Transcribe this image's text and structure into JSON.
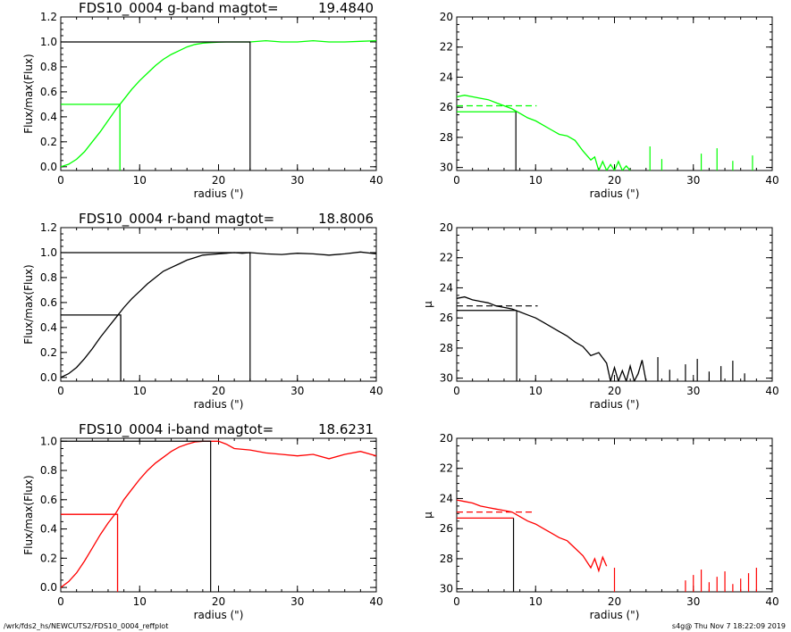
{
  "chart_data": [
    {
      "type": "line",
      "panel": "growth-curve",
      "band": "g",
      "title": "FDS10_0004 g-band  magtot=",
      "title_value": "19.4840",
      "color": "#00ff00",
      "xlabel": "radius (\")",
      "ylabel": "Flux/max(Flux)",
      "xlim": [
        0,
        40
      ],
      "ylim": [
        -0.03,
        1.2
      ],
      "xticks": [
        "0",
        "10",
        "20",
        "30",
        "40"
      ],
      "yticks": [
        "0.0",
        "0.2",
        "0.4",
        "0.6",
        "0.8",
        "1.0",
        "1.2"
      ],
      "x": [
        0,
        1,
        2,
        3,
        4,
        5,
        6,
        7,
        8,
        9,
        10,
        11,
        12,
        13,
        14,
        15,
        16,
        17,
        18,
        19,
        20,
        21,
        22,
        23,
        24,
        26,
        28,
        30,
        32,
        34,
        36,
        38,
        40
      ],
      "values": [
        0,
        0.02,
        0.06,
        0.12,
        0.2,
        0.28,
        0.37,
        0.46,
        0.54,
        0.62,
        0.69,
        0.75,
        0.81,
        0.86,
        0.9,
        0.93,
        0.96,
        0.98,
        0.99,
        0.995,
        0.998,
        1.0,
        1.0,
        1.0,
        1.0,
        1.01,
        1.0,
        1.0,
        1.01,
        1.0,
        1.0,
        1.005,
        1.01
      ],
      "half_radius": 7.5,
      "total_radius": 24
    },
    {
      "type": "line",
      "panel": "surface-brightness",
      "band": "g",
      "color": "#00ff00",
      "xlabel": "radius (\")",
      "ylabel": "",
      "xlim": [
        0,
        40
      ],
      "ylim": [
        20,
        30.2
      ],
      "xticks": [
        "0",
        "10",
        "20",
        "30",
        "40"
      ],
      "yticks": [
        "20",
        "22",
        "24",
        "26",
        "28",
        "30"
      ],
      "x": [
        0,
        1,
        2,
        3,
        4,
        5,
        6,
        7,
        8,
        9,
        10,
        11,
        12,
        13,
        14,
        15,
        16,
        17,
        17.5,
        18,
        18.5,
        19,
        19.5,
        20,
        20.5,
        21,
        21.5,
        22
      ],
      "values": [
        25.3,
        25.2,
        25.3,
        25.4,
        25.5,
        25.7,
        25.9,
        26.1,
        26.4,
        26.7,
        26.9,
        27.2,
        27.5,
        27.8,
        27.9,
        28.2,
        28.9,
        29.5,
        29.3,
        30.2,
        29.6,
        30.2,
        29.8,
        30.2,
        29.6,
        30.2,
        29.9,
        30.2
      ],
      "spikes_x": [
        24.5,
        26,
        31,
        33,
        35,
        37.5
      ],
      "half_mu": 26.3,
      "mean_mu": 25.9,
      "half_radius": 7.5
    },
    {
      "type": "line",
      "panel": "growth-curve",
      "band": "r",
      "title": "FDS10_0004 r-band  magtot=",
      "title_value": "18.8006",
      "color": "#000000",
      "xlabel": "radius (\")",
      "ylabel": "Flux/max(Flux)",
      "xlim": [
        0,
        40
      ],
      "ylim": [
        -0.03,
        1.2
      ],
      "xticks": [
        "0",
        "10",
        "20",
        "30",
        "40"
      ],
      "yticks": [
        "0.0",
        "0.2",
        "0.4",
        "0.6",
        "0.8",
        "1.0",
        "1.2"
      ],
      "x": [
        0,
        1,
        2,
        3,
        4,
        5,
        6,
        7,
        8,
        9,
        10,
        11,
        12,
        13,
        14,
        15,
        16,
        17,
        18,
        19,
        20,
        21,
        22,
        23,
        24,
        26,
        28,
        30,
        32,
        34,
        36,
        38,
        40
      ],
      "values": [
        0,
        0.03,
        0.08,
        0.15,
        0.23,
        0.32,
        0.4,
        0.48,
        0.56,
        0.63,
        0.69,
        0.75,
        0.8,
        0.85,
        0.88,
        0.91,
        0.94,
        0.96,
        0.98,
        0.985,
        0.99,
        0.995,
        1.0,
        0.995,
        1.0,
        0.99,
        0.985,
        0.995,
        0.99,
        0.98,
        0.99,
        1.005,
        0.99
      ],
      "half_radius": 7.6,
      "total_radius": 24
    },
    {
      "type": "line",
      "panel": "surface-brightness",
      "band": "r",
      "color": "#000000",
      "xlabel": "radius (\")",
      "ylabel": "μ",
      "xlim": [
        0,
        40
      ],
      "ylim": [
        20,
        30.2
      ],
      "xticks": [
        "0",
        "10",
        "20",
        "30",
        "40"
      ],
      "yticks": [
        "20",
        "22",
        "24",
        "26",
        "28",
        "30"
      ],
      "x": [
        0,
        1,
        2,
        3,
        4,
        5,
        6,
        7,
        8,
        9,
        10,
        11,
        12,
        13,
        14,
        15,
        16,
        17,
        18,
        19,
        19.5,
        20,
        20.5,
        21,
        21.5,
        22,
        22.5,
        23,
        23.5,
        24
      ],
      "values": [
        24.7,
        24.6,
        24.8,
        24.9,
        25.0,
        25.2,
        25.3,
        25.4,
        25.6,
        25.8,
        26.0,
        26.3,
        26.6,
        26.9,
        27.2,
        27.6,
        27.9,
        28.5,
        28.3,
        29.0,
        30.2,
        29.3,
        30.2,
        29.5,
        30.2,
        29.2,
        30.2,
        29.7,
        28.8,
        30.2
      ],
      "spikes_x": [
        25.5,
        27,
        29,
        30.5,
        32,
        33.5,
        35,
        36.5
      ],
      "half_mu": 25.5,
      "mean_mu": 25.2,
      "half_radius": 7.6
    },
    {
      "type": "line",
      "panel": "growth-curve",
      "band": "i",
      "title": "FDS10_0004 i-band  magtot=",
      "title_value": "18.6231",
      "color": "#ff0000",
      "xlabel": "radius (\")",
      "ylabel": "Flux/max(Flux)",
      "xlim": [
        0,
        40
      ],
      "ylim": [
        -0.03,
        1.02
      ],
      "xticks": [
        "0",
        "10",
        "20",
        "30",
        "40"
      ],
      "yticks": [
        "0.0",
        "0.2",
        "0.4",
        "0.6",
        "0.8",
        "1.0"
      ],
      "x": [
        0,
        1,
        2,
        3,
        4,
        5,
        6,
        7,
        8,
        9,
        10,
        11,
        12,
        13,
        14,
        15,
        16,
        17,
        18,
        19,
        20,
        21,
        22,
        24,
        26,
        28,
        30,
        32,
        34,
        36,
        38,
        40
      ],
      "values": [
        0,
        0.04,
        0.1,
        0.18,
        0.27,
        0.36,
        0.44,
        0.51,
        0.6,
        0.67,
        0.74,
        0.8,
        0.85,
        0.89,
        0.93,
        0.96,
        0.98,
        0.995,
        1.0,
        1.0,
        1.0,
        0.98,
        0.95,
        0.94,
        0.92,
        0.91,
        0.9,
        0.91,
        0.88,
        0.91,
        0.93,
        0.9
      ],
      "half_radius": 7.2,
      "total_radius": 19
    },
    {
      "type": "line",
      "panel": "surface-brightness",
      "band": "i",
      "color": "#ff0000",
      "xlabel": "radius (\")",
      "ylabel": "μ",
      "xlim": [
        0,
        40
      ],
      "ylim": [
        20,
        30.2
      ],
      "xticks": [
        "0",
        "10",
        "20",
        "30",
        "40"
      ],
      "yticks": [
        "20",
        "22",
        "24",
        "26",
        "28",
        "30"
      ],
      "x": [
        0,
        1,
        2,
        3,
        4,
        5,
        6,
        7,
        8,
        9,
        10,
        11,
        12,
        13,
        14,
        15,
        16,
        17,
        17.5,
        18,
        18.5,
        19
      ],
      "values": [
        24.1,
        24.2,
        24.3,
        24.5,
        24.6,
        24.7,
        24.8,
        24.9,
        25.2,
        25.5,
        25.7,
        26.0,
        26.3,
        26.6,
        26.8,
        27.3,
        27.8,
        28.6,
        28.0,
        28.8,
        27.9,
        28.5
      ],
      "spikes_x": [
        20,
        29,
        30,
        31,
        32,
        33,
        34,
        35,
        36,
        37,
        38
      ],
      "half_mu": 25.3,
      "mean_mu": 24.9,
      "half_radius": 7.2
    }
  ],
  "footer": {
    "path": "/wrk/fds2_hs/NEWCUTS2/FDS10_0004_reffplot",
    "stamp": "s4g@  Thu Nov  7 18:22:09 2019"
  }
}
